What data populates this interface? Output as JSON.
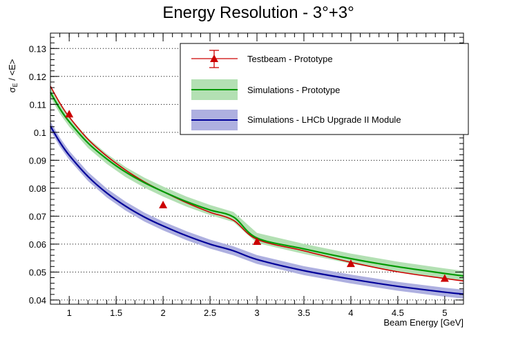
{
  "chart_data": {
    "type": "line",
    "title": "Energy Resolution - 3°+3°",
    "xlabel": "Beam Energy [GeV]",
    "ylabel": "σ_E / <E>",
    "ylabel_parts": {
      "sigma": "σ",
      "sub": "E",
      "rest": " / <E>"
    },
    "xlim": [
      0.8,
      5.2
    ],
    "ylim": [
      0.0385,
      0.1355
    ],
    "x_ticks": [
      1,
      1.5,
      2,
      2.5,
      3,
      3.5,
      4,
      4.5,
      5
    ],
    "x_tick_labels": [
      "1",
      "1.5",
      "2",
      "2.5",
      "3",
      "3.5",
      "4",
      "4.5",
      "5"
    ],
    "y_ticks": [
      0.04,
      0.05,
      0.06,
      0.07,
      0.08,
      0.09,
      0.1,
      0.11,
      0.12,
      0.13
    ],
    "y_tick_labels": [
      "0.04",
      "0.05",
      "0.06",
      "0.07",
      "0.08",
      "0.09",
      "0.1",
      "0.11",
      "0.12",
      "0.13"
    ],
    "grid": "horizontal-dotted",
    "legend_position": "top-right",
    "series": [
      {
        "name": "Testbeam - Prototype",
        "kind": "points-with-fit",
        "color": "#cc0000",
        "marker_color": "#cc0000",
        "points": [
          {
            "x": 1,
            "y": 0.1063
          },
          {
            "x": 2,
            "y": 0.0738
          },
          {
            "x": 3,
            "y": 0.0607
          },
          {
            "x": 4,
            "y": 0.0528
          },
          {
            "x": 5,
            "y": 0.0475
          }
        ],
        "fit_x": [
          0.8,
          0.9,
          1.0,
          1.2,
          1.4,
          1.6,
          1.8,
          2.0,
          2.25,
          2.5,
          2.75,
          3.0,
          3.5,
          4.0,
          4.5,
          5.0,
          5.2
        ],
        "fit_y": [
          0.1165,
          0.1105,
          0.1055,
          0.0975,
          0.0915,
          0.0865,
          0.0823,
          0.0788,
          0.0748,
          0.0714,
          0.0685,
          0.0617,
          0.0576,
          0.0535,
          0.0501,
          0.0477,
          0.0468
        ],
        "legend_label": "Testbeam - Prototype"
      },
      {
        "name": "Simulations - Prototype",
        "kind": "line-with-band",
        "color": "#009900",
        "band_color": "#b3e0b3",
        "x": [
          0.8,
          0.9,
          1.0,
          1.2,
          1.4,
          1.6,
          1.8,
          2.0,
          2.25,
          2.5,
          2.75,
          3.0,
          3.5,
          4.0,
          4.5,
          5.0,
          5.2
        ],
        "y": [
          0.1143,
          0.1085,
          0.1038,
          0.0962,
          0.0905,
          0.0858,
          0.082,
          0.0788,
          0.0752,
          0.0722,
          0.0697,
          0.0622,
          0.0583,
          0.0548,
          0.0519,
          0.0495,
          0.0486
        ],
        "band_halfwidth": 0.0018,
        "legend_label": "Simulations - Prototype"
      },
      {
        "name": "Simulations - LHCb Upgrade II Module",
        "kind": "line-with-band",
        "color": "#000099",
        "band_color": "#aeb0e0",
        "x": [
          0.8,
          0.9,
          1.0,
          1.2,
          1.4,
          1.6,
          1.8,
          2.0,
          2.25,
          2.5,
          2.75,
          3.0,
          3.5,
          4.0,
          4.5,
          5.0,
          5.2
        ],
        "y": [
          0.1022,
          0.0965,
          0.0918,
          0.0842,
          0.0783,
          0.0736,
          0.0697,
          0.0665,
          0.063,
          0.06,
          0.0576,
          0.0545,
          0.0505,
          0.0475,
          0.0449,
          0.0428,
          0.0421
        ],
        "band_halfwidth": 0.0016,
        "legend_label": "Simulations - LHCb Upgrade II Module"
      }
    ]
  }
}
